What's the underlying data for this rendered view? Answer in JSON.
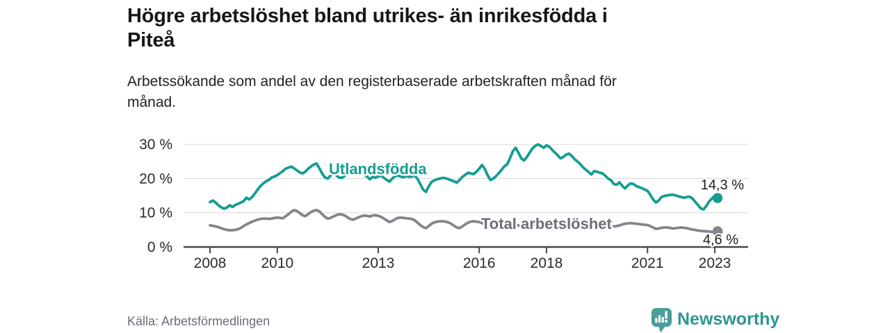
{
  "header": {
    "title_lines": [
      "Högre arbetslöshet bland utrikes- än inrikesfödda i",
      "Piteå"
    ],
    "subtitle_lines": [
      "Arbetssökande som andel av den registerbaserade arbetskraften månad för",
      "månad."
    ]
  },
  "footer": {
    "source": "Källa: Arbetsförmedlingen",
    "brand": "Newsworthy",
    "brand_color": "#2e968d",
    "logo_color": "#4a9e99"
  },
  "chart_data": {
    "type": "line",
    "title": "Högre arbetslöshet bland utrikes- än inrikesfödda i Piteå",
    "subtitle": "Arbetssökande som andel av den registerbaserade arbetskraften månad för månad.",
    "x_unit": "month",
    "x_range": [
      "2008-01",
      "2023-02"
    ],
    "x_tick_years": [
      2008,
      2010,
      2013,
      2016,
      2018,
      2021,
      2023
    ],
    "x_tick_labels": [
      "2008",
      "2010",
      "2013",
      "2016",
      "2018",
      "2021",
      "2023"
    ],
    "y_ticks": [
      0,
      10,
      20,
      30
    ],
    "y_tick_labels": [
      "0 %",
      "10 %",
      "20 %",
      "30 %"
    ],
    "ylim": [
      0,
      32
    ],
    "grid": "horizontal",
    "legend_position": "inline-labels",
    "axis_color": "#474747",
    "grid_color": "#dddddd",
    "tick_label_color": "#2b2b2b",
    "value_label_color": "#1b1b1b",
    "series": [
      {
        "name": "Total arbetslöshet",
        "color": "#84848a",
        "label_color": "#6e6e78",
        "end_label": "4,6 %",
        "end_value": 4.6,
        "values": [
          6.3,
          6.2,
          6.0,
          5.8,
          5.5,
          5.2,
          5.0,
          4.9,
          4.9,
          5.0,
          5.2,
          5.6,
          6.1,
          6.6,
          7.0,
          7.4,
          7.7,
          8.0,
          8.2,
          8.3,
          8.3,
          8.2,
          8.3,
          8.5,
          8.6,
          8.5,
          8.4,
          9.0,
          9.6,
          10.3,
          10.8,
          10.5,
          9.9,
          9.3,
          9.0,
          9.6,
          10.2,
          10.6,
          10.8,
          10.4,
          9.6,
          8.8,
          8.3,
          8.5,
          8.9,
          9.3,
          9.6,
          9.5,
          9.2,
          8.7,
          8.2,
          8.0,
          8.3,
          8.7,
          9.0,
          9.2,
          9.1,
          8.9,
          9.2,
          9.3,
          9.1,
          8.8,
          8.3,
          7.8,
          7.3,
          7.6,
          8.1,
          8.5,
          8.6,
          8.5,
          8.4,
          8.3,
          8.2,
          7.8,
          7.1,
          6.4,
          5.8,
          5.5,
          6.1,
          6.8,
          7.2,
          7.4,
          7.5,
          7.5,
          7.4,
          7.2,
          6.8,
          6.2,
          5.7,
          5.5,
          6.0,
          6.6,
          7.1,
          7.4,
          7.5,
          7.4,
          7.3,
          7.0,
          6.6,
          6.1,
          5.7,
          5.6,
          5.9,
          6.3,
          6.6,
          6.8,
          6.9,
          6.9,
          6.8,
          6.6,
          6.3,
          6.0,
          5.8,
          5.9,
          6.2,
          6.5,
          6.7,
          6.8,
          6.8,
          6.7,
          6.5,
          6.2,
          5.9,
          5.6,
          5.5,
          5.6,
          5.9,
          6.1,
          6.2,
          6.2,
          6.1,
          6.0,
          5.9,
          5.7,
          5.5,
          5.4,
          5.4,
          5.6,
          5.8,
          6.0,
          6.1,
          6.1,
          6.0,
          6.0,
          6.0,
          6.1,
          6.3,
          6.6,
          6.8,
          6.9,
          7.0,
          6.9,
          6.8,
          6.7,
          6.6,
          6.5,
          6.4,
          6.1,
          5.7,
          5.3,
          5.4,
          5.6,
          5.7,
          5.7,
          5.6,
          5.4,
          5.5,
          5.6,
          5.7,
          5.6,
          5.5,
          5.3,
          5.1,
          5.0,
          4.8,
          4.7,
          4.6,
          4.6,
          4.5,
          4.4,
          4.5,
          4.6
        ]
      },
      {
        "name": "Utlandsfödda",
        "color": "#149d92",
        "label_color": "#149d92",
        "end_label": "14,3 %",
        "end_value": 14.3,
        "values": [
          13.1,
          13.6,
          13.0,
          12.2,
          11.6,
          11.2,
          11.5,
          12.2,
          11.7,
          12.3,
          12.6,
          13.0,
          13.4,
          14.4,
          13.9,
          14.6,
          15.6,
          16.8,
          17.8,
          18.6,
          19.2,
          19.6,
          20.3,
          20.6,
          21.0,
          21.6,
          22.2,
          22.9,
          23.2,
          23.5,
          23.0,
          22.4,
          21.8,
          21.5,
          22.0,
          22.9,
          23.5,
          24.1,
          24.4,
          23.0,
          21.5,
          20.3,
          20.0,
          20.9,
          21.4,
          21.0,
          20.3,
          20.2,
          20.8,
          21.4,
          22.0,
          22.5,
          23.0,
          22.7,
          21.8,
          21.2,
          20.6,
          19.8,
          20.5,
          20.3,
          20.6,
          20.9,
          20.2,
          19.6,
          19.1,
          20.0,
          20.7,
          20.9,
          20.6,
          20.4,
          20.7,
          20.5,
          20.6,
          20.9,
          19.9,
          18.4,
          16.8,
          16.1,
          17.7,
          19.0,
          19.5,
          19.8,
          20.0,
          20.2,
          20.1,
          19.8,
          19.5,
          19.2,
          18.8,
          19.6,
          20.5,
          21.1,
          21.7,
          21.5,
          21.3,
          22.0,
          22.9,
          24.0,
          22.8,
          21.0,
          19.6,
          20.0,
          20.7,
          21.6,
          22.6,
          23.6,
          24.2,
          26.0,
          28.0,
          29.0,
          27.5,
          25.9,
          25.3,
          26.3,
          27.6,
          28.8,
          29.6,
          30.0,
          29.5,
          29.0,
          29.7,
          29.3,
          28.4,
          27.6,
          26.8,
          25.9,
          26.3,
          27.0,
          27.3,
          26.6,
          25.7,
          25.0,
          24.3,
          23.3,
          22.6,
          21.9,
          21.2,
          22.2,
          22.0,
          21.7,
          21.5,
          20.8,
          20.0,
          19.5,
          18.4,
          18.2,
          18.9,
          17.9,
          17.1,
          18.0,
          18.6,
          18.4,
          17.8,
          17.5,
          17.2,
          16.8,
          16.4,
          15.3,
          13.9,
          13.0,
          13.6,
          14.6,
          14.9,
          15.1,
          15.2,
          15.3,
          15.1,
          14.8,
          14.6,
          14.4,
          14.6,
          14.7,
          14.2,
          13.2,
          12.3,
          11.3,
          11.0,
          12.0,
          13.3,
          14.2,
          15.0,
          14.3
        ]
      }
    ]
  }
}
